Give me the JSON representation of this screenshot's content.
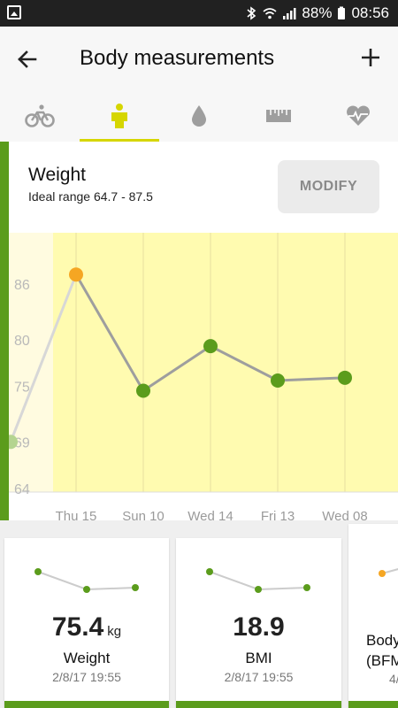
{
  "status": {
    "battery": "88%",
    "time": "08:56"
  },
  "header": {
    "title": "Body measurements"
  },
  "tabs": [
    {
      "icon": "bicycle-icon"
    },
    {
      "icon": "body-icon",
      "active": true
    },
    {
      "icon": "drop-icon"
    },
    {
      "icon": "ruler-icon"
    },
    {
      "icon": "heart-rate-icon"
    }
  ],
  "card": {
    "title": "Weight",
    "subtitle": "Ideal range 64.7 - 87.5",
    "modify_label": "MODIFY"
  },
  "chart_data": {
    "type": "line",
    "y_ticks": [
      "86",
      "80",
      "75",
      "69",
      "64"
    ],
    "x_labels": [
      "Thu 15",
      "Sun 10",
      "Wed 14",
      "Fri 13",
      "Wed 08"
    ],
    "values": [
      87.0,
      74.5,
      79.3,
      75.6,
      75.9
    ],
    "previous_value": 69,
    "ideal_range": [
      64.7,
      87.5
    ],
    "point_colors": [
      "#f5a623",
      "#5b9c1c",
      "#5b9c1c",
      "#5b9c1c",
      "#5b9c1c"
    ],
    "ylim": [
      63.6,
      91.5
    ]
  },
  "tiles": [
    {
      "value": "75.4",
      "unit": "kg",
      "label": "Weight",
      "date": "2/8/17 19:55"
    },
    {
      "value": "18.9",
      "unit": "",
      "label": "BMI",
      "date": "2/8/17 19:55"
    },
    {
      "value": "",
      "unit": "",
      "label": "Body",
      "label2": "(BFM",
      "date": "4/"
    }
  ],
  "colors": {
    "accent": "#5b9c1c",
    "highlight": "#f5a623",
    "range_band": "#fffbb0",
    "tab_indicator": "#d6d600"
  }
}
